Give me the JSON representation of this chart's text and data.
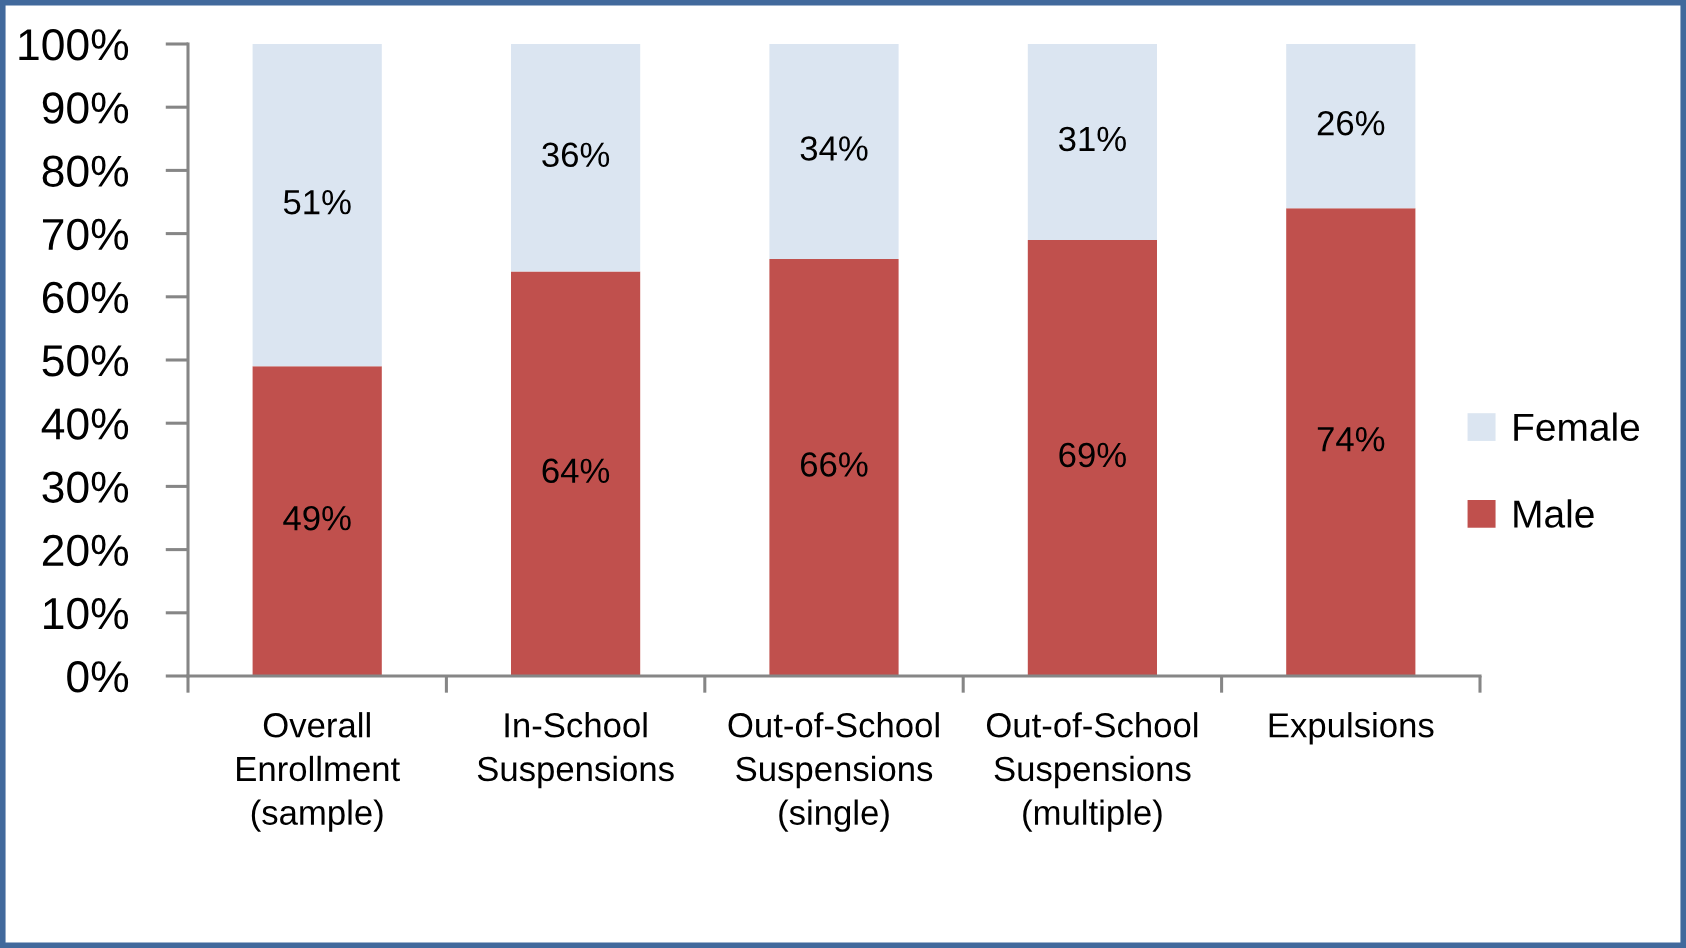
{
  "chart_data": {
    "type": "bar",
    "stacked": true,
    "categories": [
      "Overall\nEnrollment\n(sample)",
      "In-School\nSuspensions",
      "Out-of-School\nSuspensions\n(single)",
      "Out-of-School\nSuspensions\n(multiple)",
      "Expulsions"
    ],
    "series": [
      {
        "name": "Male",
        "color": "#c0504d",
        "values": [
          49,
          64,
          66,
          69,
          74
        ],
        "value_labels": [
          "49%",
          "64%",
          "66%",
          "69%",
          "74%"
        ]
      },
      {
        "name": "Female",
        "color": "#dbe5f1",
        "values": [
          51,
          36,
          34,
          31,
          26
        ],
        "value_labels": [
          "51%",
          "36%",
          "34%",
          "31%",
          "26%"
        ]
      }
    ],
    "ylim": [
      0,
      100
    ],
    "yticks": [
      {
        "value": 0,
        "label": "0%"
      },
      {
        "value": 10,
        "label": "10%"
      },
      {
        "value": 20,
        "label": "20%"
      },
      {
        "value": 30,
        "label": "30%"
      },
      {
        "value": 40,
        "label": "40%"
      },
      {
        "value": 50,
        "label": "50%"
      },
      {
        "value": 60,
        "label": "60%"
      },
      {
        "value": 70,
        "label": "70%"
      },
      {
        "value": 80,
        "label": "80%"
      },
      {
        "value": 90,
        "label": "90%"
      },
      {
        "value": 100,
        "label": "100%"
      }
    ],
    "legend": "right"
  }
}
